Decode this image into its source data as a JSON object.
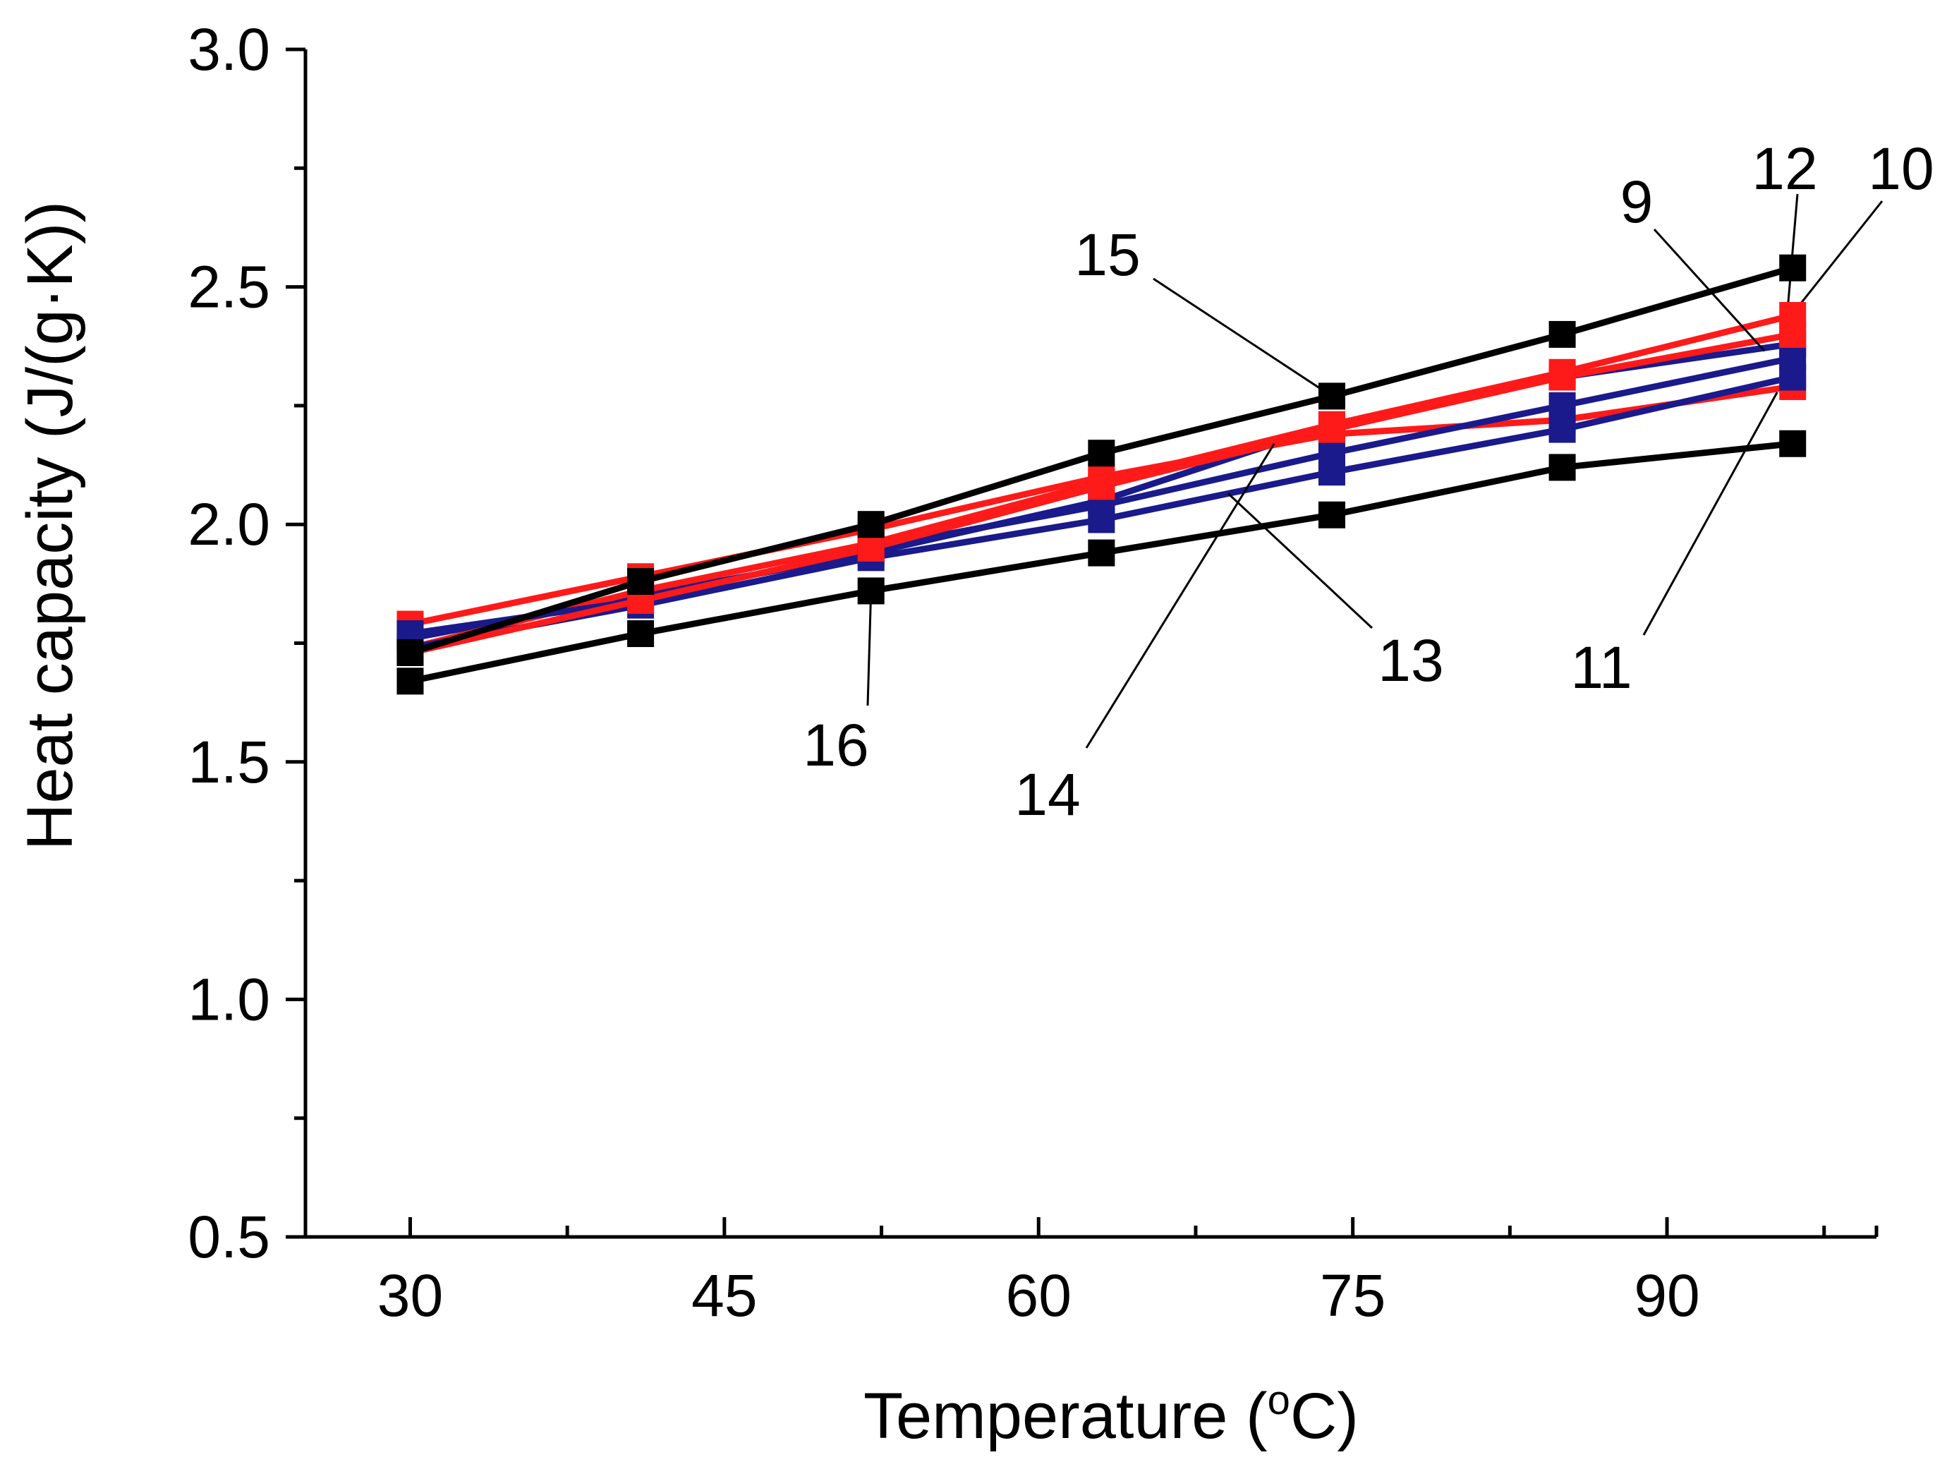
{
  "chart_data": {
    "type": "line",
    "title": "",
    "xlabel": "Temperature (",
    "xlabel_degree": "o",
    "xlabel_unit": "C)",
    "ylabel": "Heat capacity (J/(g·K))",
    "xlim": [
      25,
      100
    ],
    "ylim": [
      0.5,
      3.0
    ],
    "xticks": [
      30,
      45,
      60,
      75,
      90
    ],
    "xtick_labels": [
      "30",
      "45",
      "60",
      "75",
      "90"
    ],
    "yticks": [
      0.5,
      1.0,
      1.5,
      2.0,
      2.5,
      3.0
    ],
    "ytick_labels": [
      "0.5",
      "1.0",
      "1.5",
      "2.0",
      "2.5",
      "3.0"
    ],
    "x": [
      30,
      41,
      52,
      63,
      74,
      85,
      96
    ],
    "series": [
      {
        "name": "9",
        "color": "#1a1a8c",
        "values": [
          1.76,
          1.85,
          1.94,
          2.05,
          2.21,
          2.31,
          2.38
        ]
      },
      {
        "name": "10",
        "color": "#ff1a1a",
        "values": [
          1.74,
          1.86,
          1.96,
          2.09,
          2.21,
          2.32,
          2.44
        ]
      },
      {
        "name": "11",
        "color": "#ff1a1a",
        "values": [
          1.79,
          1.89,
          1.99,
          2.1,
          2.19,
          2.22,
          2.29
        ]
      },
      {
        "name": "12",
        "color": "#1a1a8c",
        "values": [
          1.77,
          1.84,
          1.95,
          2.04,
          2.15,
          2.25,
          2.35
        ]
      },
      {
        "name": "13",
        "color": "#1a1a8c",
        "values": [
          1.74,
          1.83,
          1.93,
          2.01,
          2.11,
          2.2,
          2.31
        ]
      },
      {
        "name": "14",
        "color": "#ff1a1a",
        "values": [
          1.73,
          1.84,
          1.95,
          2.08,
          2.2,
          2.31,
          2.4
        ]
      },
      {
        "name": "15",
        "color": "#000000",
        "values": [
          1.73,
          1.88,
          2.0,
          2.15,
          2.27,
          2.4,
          2.54
        ]
      },
      {
        "name": "16",
        "color": "#000000",
        "values": [
          1.67,
          1.77,
          1.86,
          1.94,
          2.02,
          2.12,
          2.17
        ]
      }
    ],
    "annotations": [
      {
        "label": "9",
        "series": "9"
      },
      {
        "label": "10",
        "series": "10"
      },
      {
        "label": "11",
        "series": "11"
      },
      {
        "label": "12",
        "series": "12"
      },
      {
        "label": "13",
        "series": "13"
      },
      {
        "label": "14",
        "series": "14"
      },
      {
        "label": "15",
        "series": "15"
      },
      {
        "label": "16",
        "series": "16"
      }
    ],
    "grid": false,
    "legend": "none"
  }
}
